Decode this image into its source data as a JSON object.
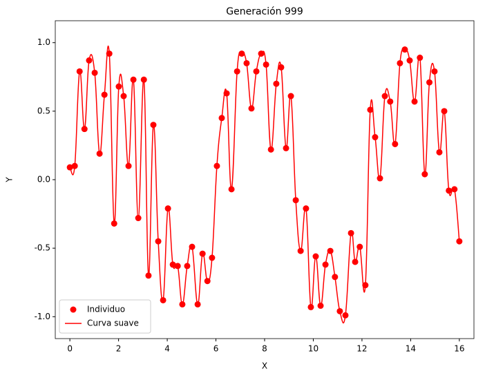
{
  "chart_data": {
    "type": "scatter",
    "title": "Generación 999",
    "x_label": "X",
    "y_label": "Y",
    "x": [
      0,
      0.2,
      0.4,
      0.6,
      0.79,
      1.02,
      1.22,
      1.42,
      1.62,
      1.82,
      2.01,
      2.21,
      2.41,
      2.61,
      2.81,
      3.04,
      3.23,
      3.43,
      3.63,
      3.83,
      4.03,
      4.23,
      4.43,
      4.62,
      4.82,
      5.02,
      5.25,
      5.45,
      5.65,
      5.84,
      6.04,
      6.24,
      6.44,
      6.64,
      6.87,
      7.06,
      7.26,
      7.46,
      7.66,
      7.86,
      8.06,
      8.26,
      8.48,
      8.68,
      8.88,
      9.08,
      9.28,
      9.48,
      9.7,
      9.9,
      10.1,
      10.3,
      10.5,
      10.7,
      10.89,
      11.09,
      11.32,
      11.55,
      11.72,
      11.91,
      12.14,
      12.34,
      12.54,
      12.74,
      12.94,
      13.16,
      13.36,
      13.56,
      13.76,
      13.96,
      14.16,
      14.38,
      14.58,
      14.77,
      14.98,
      15.18,
      15.38,
      15.57,
      15.8,
      16.0
    ],
    "series": [
      {
        "name": "Individuo",
        "color": "#ff0000",
        "values": [
          0.09,
          0.1,
          0.79,
          0.37,
          0.87,
          0.78,
          0.19,
          0.62,
          0.92,
          -0.32,
          0.68,
          0.61,
          0.1,
          0.73,
          -0.28,
          0.73,
          -0.7,
          0.4,
          -0.45,
          -0.88,
          -0.21,
          -0.62,
          -0.63,
          -0.91,
          -0.63,
          -0.49,
          -0.91,
          -0.54,
          -0.74,
          -0.57,
          0.1,
          0.45,
          0.63,
          -0.07,
          0.79,
          0.92,
          0.85,
          0.52,
          0.79,
          0.92,
          0.84,
          0.22,
          0.7,
          0.82,
          0.23,
          0.61,
          -0.15,
          -0.52,
          -0.21,
          -0.93,
          -0.56,
          -0.92,
          -0.62,
          -0.52,
          -0.71,
          -0.96,
          -0.99,
          -0.39,
          -0.6,
          -0.49,
          -0.77,
          0.51,
          0.31,
          0.01,
          0.61,
          0.57,
          0.26,
          0.85,
          0.95,
          0.87,
          0.57,
          0.89,
          0.04,
          0.71,
          0.79,
          0.2,
          0.5,
          -0.08,
          -0.07,
          -0.45
        ]
      },
      {
        "name": "Curva suave",
        "color": "#ff0000",
        "type": "line"
      }
    ],
    "xlim": [
      -0.6,
      16.6
    ],
    "ylim": [
      -1.16,
      1.16
    ],
    "xticks": [
      0,
      2,
      4,
      6,
      8,
      10,
      12,
      14,
      16
    ],
    "yticks": [
      -1.0,
      -0.5,
      0.0,
      0.5,
      1.0
    ],
    "legend": "lower left"
  }
}
